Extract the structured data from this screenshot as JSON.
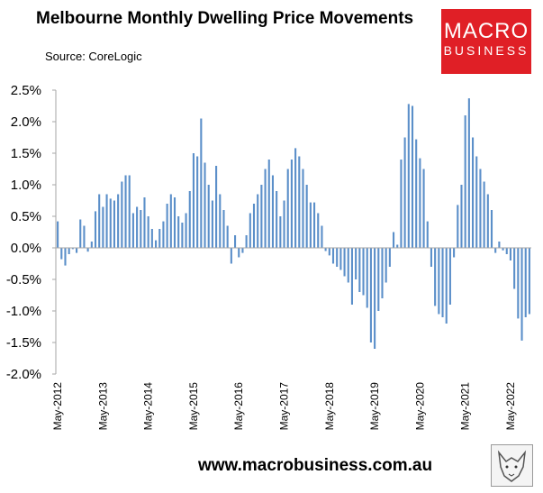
{
  "header": {
    "title": "Melbourne Monthly Dwelling Price Movements",
    "source": "Source: CoreLogic"
  },
  "logo": {
    "line1": "MACRO",
    "line2": "BUSINESS",
    "color": "#e01f26"
  },
  "footer": {
    "url": "www.macrobusiness.com.au"
  },
  "colors": {
    "bar": "#5b8fc9",
    "axis": "#a6a6a6"
  },
  "chart_data": {
    "type": "bar",
    "title": "Melbourne Monthly Dwelling Price Movements",
    "xlabel": "",
    "ylabel": "",
    "ylim": [
      -2.0,
      2.5
    ],
    "yticks": [
      "2.5%",
      "2.0%",
      "1.5%",
      "1.0%",
      "0.5%",
      "0.0%",
      "-0.5%",
      "-1.0%",
      "-1.5%",
      "-2.0%"
    ],
    "xtick_labels": [
      "May-2012",
      "May-2013",
      "May-2014",
      "May-2015",
      "May-2016",
      "May-2017",
      "May-2018",
      "May-2019",
      "May-2020",
      "May-2021",
      "May-2022"
    ],
    "start": "May-2012",
    "unit": "%",
    "values": [
      0.42,
      -0.18,
      -0.28,
      -0.1,
      -0.02,
      -0.08,
      0.45,
      0.35,
      -0.06,
      0.1,
      0.58,
      0.85,
      0.65,
      0.85,
      0.78,
      0.75,
      0.85,
      1.05,
      1.15,
      1.15,
      0.55,
      0.65,
      0.6,
      0.8,
      0.5,
      0.3,
      0.12,
      0.3,
      0.42,
      0.7,
      0.85,
      0.8,
      0.5,
      0.4,
      0.55,
      0.9,
      1.5,
      1.45,
      2.05,
      1.35,
      1.0,
      0.75,
      1.3,
      0.85,
      0.6,
      0.35,
      -0.25,
      0.2,
      -0.15,
      -0.08,
      0.2,
      0.55,
      0.7,
      0.85,
      1.0,
      1.25,
      1.4,
      1.15,
      0.9,
      0.5,
      0.75,
      1.25,
      1.4,
      1.58,
      1.45,
      1.25,
      1.0,
      0.72,
      0.72,
      0.55,
      0.35,
      -0.05,
      -0.12,
      -0.25,
      -0.3,
      -0.35,
      -0.45,
      -0.55,
      -0.9,
      -0.5,
      -0.7,
      -0.75,
      -0.95,
      -1.5,
      -1.6,
      -1.0,
      -0.8,
      -0.55,
      -0.3,
      0.25,
      0.05,
      1.4,
      1.75,
      2.28,
      2.25,
      1.72,
      1.42,
      1.25,
      0.42,
      -0.3,
      -0.92,
      -1.05,
      -1.1,
      -1.2,
      -0.9,
      -0.15,
      0.68,
      1.0,
      2.1,
      2.37,
      1.75,
      1.45,
      1.25,
      1.05,
      0.85,
      0.6,
      -0.08,
      0.1,
      -0.04,
      -0.1,
      -0.2,
      -0.65,
      -1.12,
      -1.47,
      -1.1,
      -1.05
    ]
  }
}
